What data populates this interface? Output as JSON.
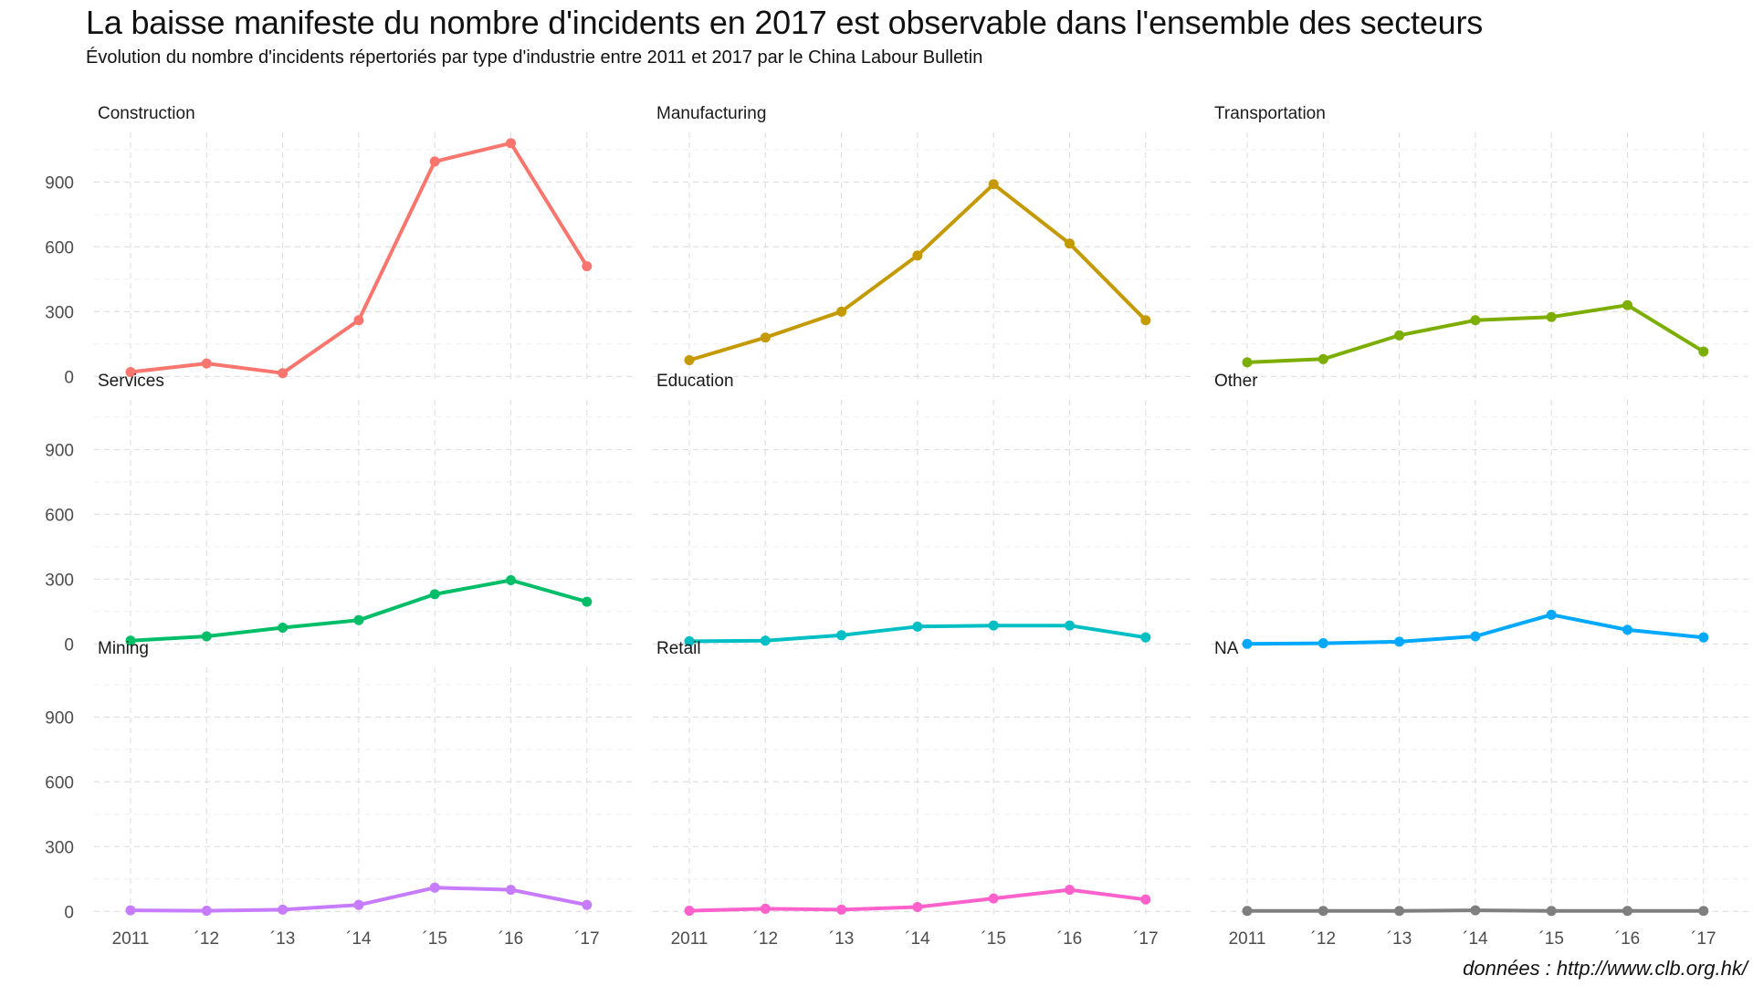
{
  "title": "La baisse manifeste du nombre d'incidents en 2017 est observable dans l'ensemble des secteurs",
  "subtitle": "Évolution du nombre d'incidents répertoriés par type d'industrie entre 2011 et 2017 par le China Labour Bulletin",
  "caption": "données : http://www.clb.org.hk/",
  "chart_data": {
    "type": "line",
    "layout": "facet-grid-3x3",
    "shared_axes": true,
    "x": [
      2011,
      2012,
      2013,
      2014,
      2015,
      2016,
      2017
    ],
    "x_tick_labels": [
      "2011",
      "´12",
      "´13",
      "´14",
      "´15",
      "´16",
      "´17"
    ],
    "y_ticks": [
      0,
      300,
      600,
      900
    ],
    "y_tick_labels": [
      "0",
      "300",
      "600",
      "900"
    ],
    "ylim": [
      -20,
      1130
    ],
    "grid": true,
    "legend": "none",
    "series": [
      {
        "name": "Construction",
        "color": "#F8766D",
        "values": [
          20,
          60,
          15,
          260,
          995,
          1080,
          510
        ]
      },
      {
        "name": "Manufacturing",
        "color": "#C49A00",
        "values": [
          75,
          180,
          300,
          560,
          890,
          615,
          260
        ]
      },
      {
        "name": "Transportation",
        "color": "#7CAE00",
        "values": [
          65,
          80,
          190,
          260,
          275,
          330,
          115
        ]
      },
      {
        "name": "Services",
        "color": "#00BE67",
        "values": [
          15,
          35,
          75,
          110,
          230,
          295,
          195
        ]
      },
      {
        "name": "Education",
        "color": "#00BFC4",
        "values": [
          12,
          15,
          40,
          80,
          85,
          85,
          30
        ]
      },
      {
        "name": "Other",
        "color": "#00A9FF",
        "values": [
          0,
          3,
          10,
          35,
          135,
          65,
          30
        ]
      },
      {
        "name": "Mining",
        "color": "#C77CFF",
        "values": [
          5,
          3,
          8,
          30,
          110,
          100,
          30
        ]
      },
      {
        "name": "Retail",
        "color": "#FF61CC",
        "values": [
          3,
          12,
          8,
          20,
          60,
          100,
          55
        ]
      },
      {
        "name": "NA",
        "color": "#7F7F7F",
        "values": [
          2,
          2,
          2,
          5,
          2,
          2,
          2
        ]
      }
    ]
  }
}
